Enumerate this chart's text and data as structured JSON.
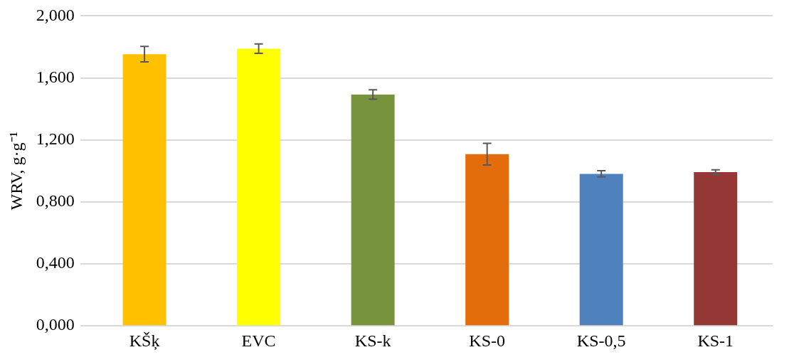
{
  "chart_data": {
    "type": "bar",
    "ylabel": "WRV, g·g⁻¹",
    "categories": [
      "KŠķ",
      "EVC",
      "KS-k",
      "KS-0",
      "KS-0,5",
      "KS-1"
    ],
    "values": [
      1.753,
      1.789,
      1.493,
      1.108,
      0.981,
      0.992
    ],
    "errors": [
      0.05,
      0.03,
      0.03,
      0.07,
      0.02,
      0.015
    ],
    "colors": [
      "#ffc000",
      "#ffff00",
      "#77933c",
      "#e46c0a",
      "#4f81bd",
      "#953735"
    ],
    "ylim": [
      0,
      2
    ],
    "yticks": [
      {
        "value": 0,
        "label": "0,000"
      },
      {
        "value": 0.4,
        "label": "0,400"
      },
      {
        "value": 0.8,
        "label": "0,800"
      },
      {
        "value": 1.2,
        "label": "1,200"
      },
      {
        "value": 1.6,
        "label": "1,600"
      },
      {
        "value": 2,
        "label": "2,000"
      }
    ],
    "grid": "y",
    "legend": false
  }
}
